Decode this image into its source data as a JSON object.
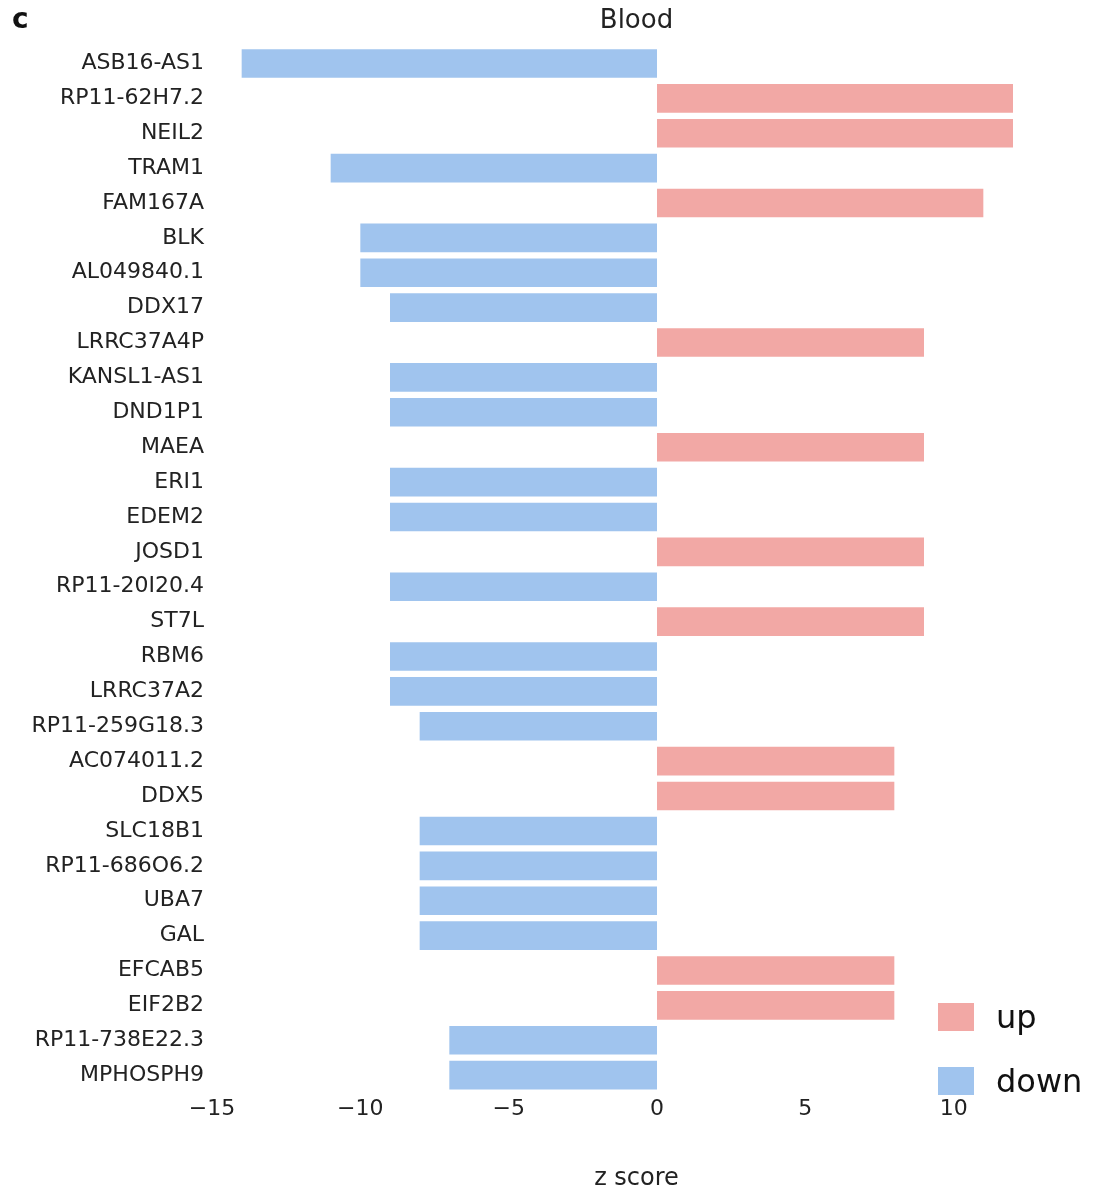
{
  "chart_data": {
    "type": "bar",
    "orientation": "horizontal",
    "stacked": true,
    "title": "Blood",
    "xlabel": "z score",
    "annotations": [
      "c"
    ],
    "categories": [
      "ASB16-AS1",
      "RP11-62H7.2",
      "NEIL2",
      "TRAM1",
      "FAM167A",
      "BLK",
      "AL049840.1",
      "DDX17",
      "LRRC37A4P",
      "KANSL1-AS1",
      "DND1P1",
      "MAEA",
      "ERI1",
      "EDEM2",
      "JOSD1",
      "RP11-20I20.4",
      "ST7L",
      "RBM6",
      "LRRC37A2",
      "RP11-259G18.3",
      "AC074011.2",
      "DDX5",
      "SLC18B1",
      "RP11-686O6.2",
      "UBA7",
      "GAL",
      "EFCAB5",
      "EIF2B2",
      "RP11-738E22.3",
      "MPHOSPH9"
    ],
    "series": [
      {
        "name": "up",
        "color": "#f2a8a5",
        "values": [
          null,
          12,
          12,
          null,
          11,
          null,
          null,
          null,
          9,
          null,
          null,
          9,
          null,
          null,
          9,
          null,
          9,
          null,
          null,
          null,
          8,
          8,
          null,
          null,
          null,
          null,
          8,
          8,
          null,
          null
        ]
      },
      {
        "name": "down",
        "color": "#a0c4ee",
        "values": [
          -14,
          null,
          null,
          -11,
          null,
          -10,
          -10,
          -9,
          null,
          -9,
          -9,
          null,
          -9,
          -9,
          null,
          -9,
          null,
          -9,
          -9,
          -8,
          null,
          null,
          -8,
          -8,
          -8,
          -8,
          null,
          null,
          -7,
          -7
        ]
      }
    ],
    "xlim": [
      -15,
      12
    ],
    "xticks": [
      -15,
      -10,
      -5,
      0,
      5,
      10
    ],
    "grid": false,
    "legend": "bottom right"
  }
}
